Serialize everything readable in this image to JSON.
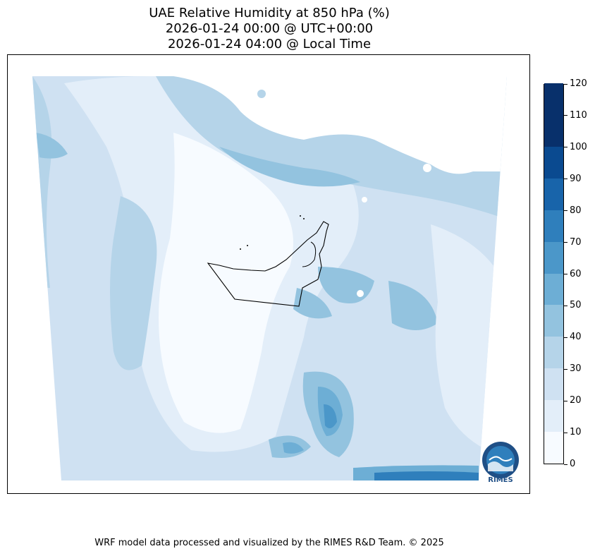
{
  "title": {
    "line1": "UAE Relative Humidity at 850 hPa (%)",
    "line2": "2026-01-24 00:00 @ UTC+00:00",
    "line3": "2026-01-24 04:00 @ Local Time"
  },
  "colorbar": {
    "ticks": [
      "0",
      "10",
      "20",
      "30",
      "40",
      "50",
      "60",
      "70",
      "80",
      "90",
      "100",
      "110",
      "120"
    ],
    "colors": [
      "#f7fbff",
      "#e3eef9",
      "#cfe1f2",
      "#b5d4e9",
      "#93c3df",
      "#6daed5",
      "#4b97c9",
      "#2f7fbc",
      "#1864aa",
      "#0a4a90",
      "#08306b",
      "#08306b"
    ]
  },
  "logo": {
    "text": "RIMES"
  },
  "footer": {
    "credit": "WRF model data processed and visualized by the RIMES R&D Team. © 2025"
  }
}
